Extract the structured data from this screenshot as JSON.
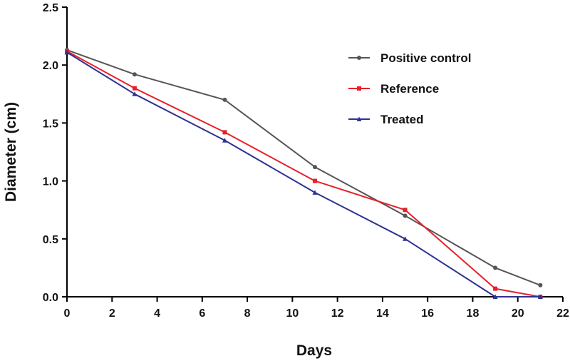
{
  "chart_data": {
    "type": "line",
    "title": "",
    "xlabel": "Days",
    "ylabel": "Diameter (cm)",
    "xlim": [
      0,
      22
    ],
    "ylim": [
      0,
      2.5
    ],
    "x_ticks": [
      0,
      2,
      4,
      6,
      8,
      10,
      12,
      14,
      16,
      18,
      20,
      22
    ],
    "y_ticks": [
      0.0,
      0.5,
      1.0,
      1.5,
      2.0,
      2.5
    ],
    "x_tick_labels": [
      "0",
      "2",
      "4",
      "6",
      "8",
      "10",
      "12",
      "14",
      "16",
      "18",
      "20",
      "22"
    ],
    "y_tick_labels": [
      "0.0",
      "0.5",
      "1.0",
      "1.5",
      "2.0",
      "2.5"
    ],
    "grid": false,
    "legend_position": "top-right",
    "series": [
      {
        "name": "Positive control",
        "color": "#555555",
        "marker": "circle",
        "x": [
          0,
          3,
          7,
          11,
          15,
          19,
          21
        ],
        "y": [
          2.13,
          1.92,
          1.7,
          1.12,
          0.7,
          0.25,
          0.1
        ]
      },
      {
        "name": "Reference",
        "color": "#e8202a",
        "marker": "square",
        "x": [
          0,
          3,
          7,
          11,
          15,
          19,
          21
        ],
        "y": [
          2.12,
          1.8,
          1.42,
          1.0,
          0.75,
          0.07,
          0.0
        ]
      },
      {
        "name": "Treated",
        "color": "#2e3192",
        "marker": "triangle",
        "x": [
          0,
          3,
          7,
          11,
          15,
          19,
          21
        ],
        "y": [
          2.11,
          1.75,
          1.35,
          0.9,
          0.5,
          0.0,
          0.0
        ]
      }
    ]
  }
}
